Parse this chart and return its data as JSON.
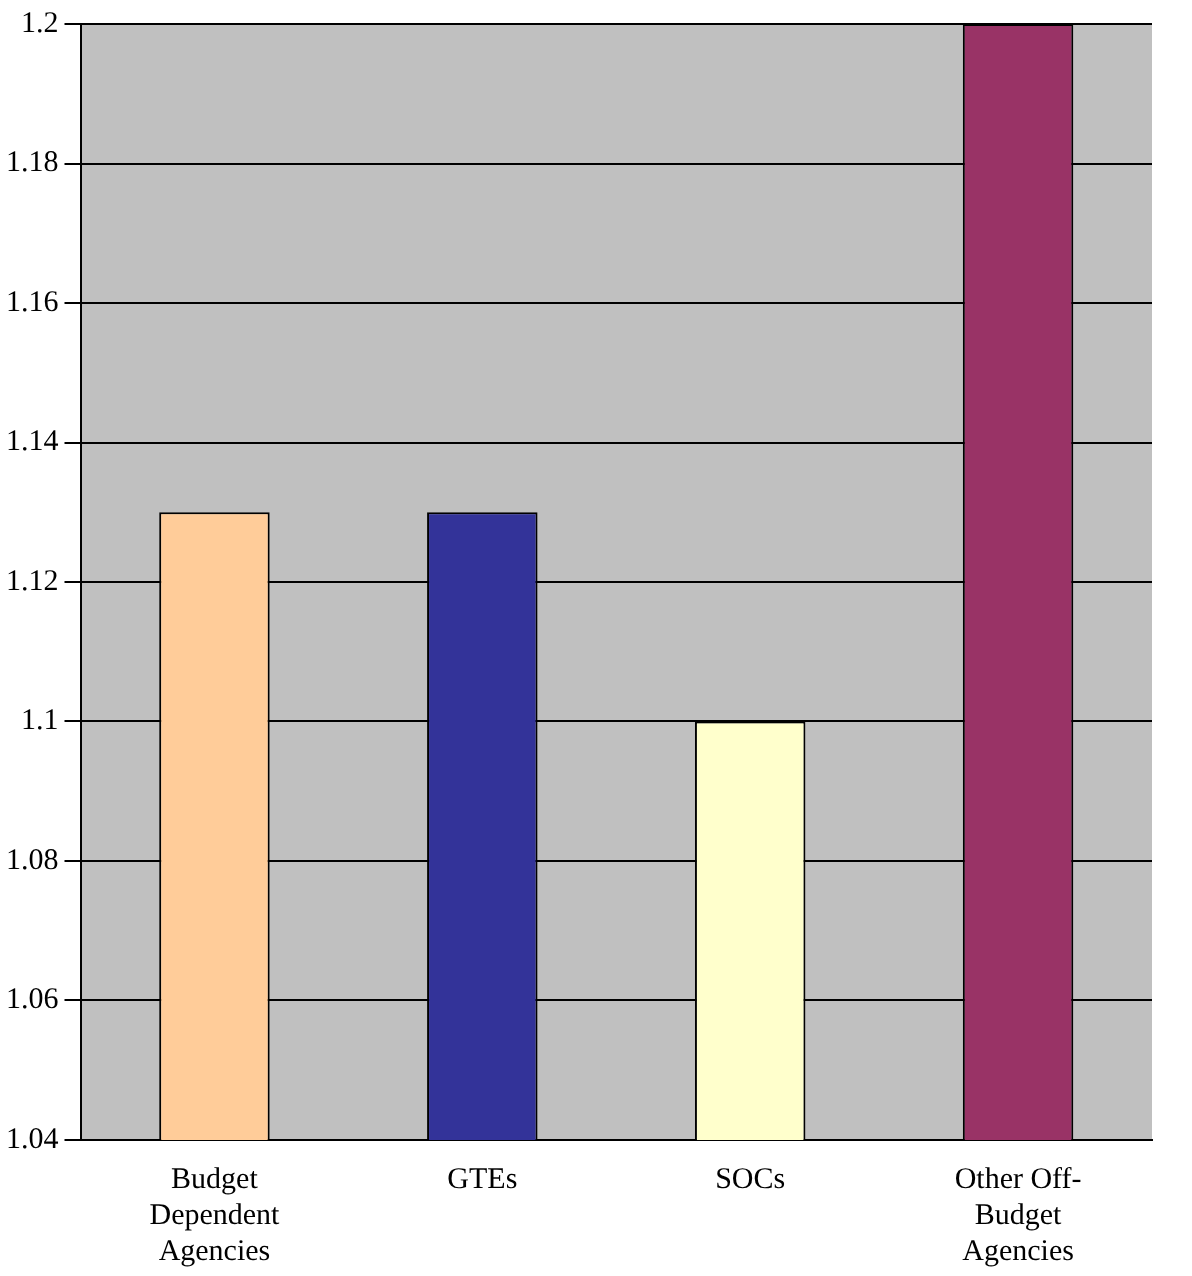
{
  "chart_data": {
    "type": "bar",
    "categories": [
      "Budget Dependent Agencies",
      "GTEs",
      "SOCs",
      "Other Off-Budget Agencies"
    ],
    "values": [
      1.13,
      1.13,
      1.1,
      1.2
    ],
    "colors": [
      "#ffcc99",
      "#333399",
      "#ffffcc",
      "#993366"
    ],
    "ylim": [
      1.04,
      1.2
    ],
    "yticks": [
      1.04,
      1.06,
      1.08,
      1.1,
      1.12,
      1.14,
      1.16,
      1.18,
      1.2
    ],
    "grid": "y"
  }
}
